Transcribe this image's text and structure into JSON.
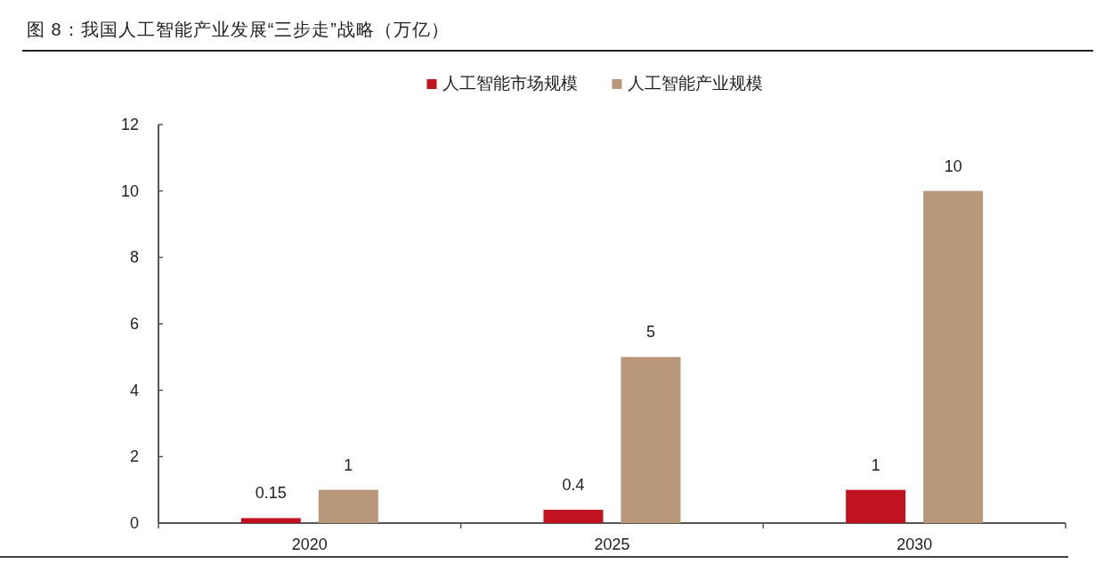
{
  "chart_data": {
    "type": "bar",
    "title": "图 8：我国人工智能产业发展“三步走”战略（万亿）",
    "categories": [
      "2020",
      "2025",
      "2030"
    ],
    "series": [
      {
        "name": "人工智能市场规模",
        "color": "#c0121f",
        "values": [
          0.15,
          0.4,
          1
        ]
      },
      {
        "name": "人工智能产业规模",
        "color": "#b8977a",
        "values": [
          1,
          5,
          10
        ]
      }
    ],
    "ylim": [
      0,
      12
    ],
    "yticks": [
      0,
      2,
      4,
      6,
      8,
      10,
      12
    ],
    "data_labels": true,
    "legend": "top",
    "grid": false
  }
}
